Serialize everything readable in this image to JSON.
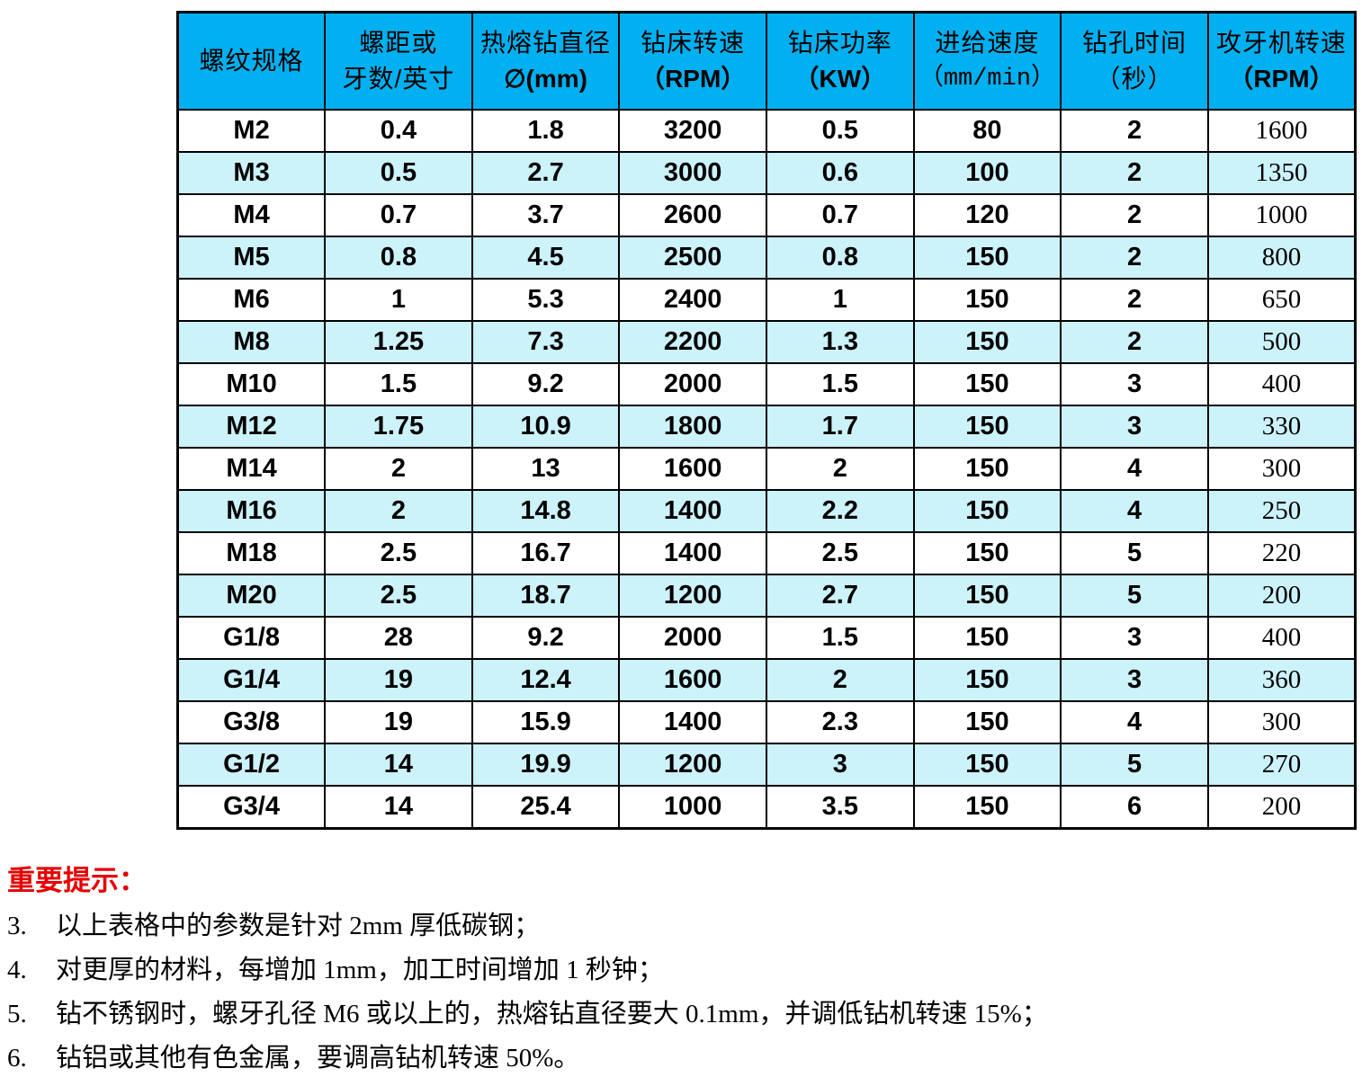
{
  "table": {
    "headers": [
      {
        "line1": "螺纹规格",
        "line2": ""
      },
      {
        "line1": "螺距或",
        "line2": "牙数/英寸"
      },
      {
        "line1": "热熔钻直径",
        "line2": "∅(mm)"
      },
      {
        "line1": "钻床转速",
        "line2": "（RPM）"
      },
      {
        "line1": "钻床功率",
        "line2": "（KW）"
      },
      {
        "line1": "进给速度",
        "line2": "（mm/min）"
      },
      {
        "line1": "钻孔时间",
        "line2": "（秒）"
      },
      {
        "line1": "攻牙机转速",
        "line2": "（RPM）"
      }
    ],
    "rows": [
      [
        "M2",
        "0.4",
        "1.8",
        "3200",
        "0.5",
        "80",
        "2",
        "1600"
      ],
      [
        "M3",
        "0.5",
        "2.7",
        "3000",
        "0.6",
        "100",
        "2",
        "1350"
      ],
      [
        "M4",
        "0.7",
        "3.7",
        "2600",
        "0.7",
        "120",
        "2",
        "1000"
      ],
      [
        "M5",
        "0.8",
        "4.5",
        "2500",
        "0.8",
        "150",
        "2",
        "800"
      ],
      [
        "M6",
        "1",
        "5.3",
        "2400",
        "1",
        "150",
        "2",
        "650"
      ],
      [
        "M8",
        "1.25",
        "7.3",
        "2200",
        "1.3",
        "150",
        "2",
        "500"
      ],
      [
        "M10",
        "1.5",
        "9.2",
        "2000",
        "1.5",
        "150",
        "3",
        "400"
      ],
      [
        "M12",
        "1.75",
        "10.9",
        "1800",
        "1.7",
        "150",
        "3",
        "330"
      ],
      [
        "M14",
        "2",
        "13",
        "1600",
        "2",
        "150",
        "4",
        "300"
      ],
      [
        "M16",
        "2",
        "14.8",
        "1400",
        "2.2",
        "150",
        "4",
        "250"
      ],
      [
        "M18",
        "2.5",
        "16.7",
        "1400",
        "2.5",
        "150",
        "5",
        "220"
      ],
      [
        "M20",
        "2.5",
        "18.7",
        "1200",
        "2.7",
        "150",
        "5",
        "200"
      ],
      [
        "G1/8",
        "28",
        "9.2",
        "2000",
        "1.5",
        "150",
        "3",
        "400"
      ],
      [
        "G1/4",
        "19",
        "12.4",
        "1600",
        "2",
        "150",
        "3",
        "360"
      ],
      [
        "G3/8",
        "19",
        "15.9",
        "1400",
        "2.3",
        "150",
        "4",
        "300"
      ],
      [
        "G1/2",
        "14",
        "19.9",
        "1200",
        "3",
        "150",
        "5",
        "270"
      ],
      [
        "G3/4",
        "14",
        "25.4",
        "1000",
        "3.5",
        "150",
        "6",
        "200"
      ]
    ]
  },
  "notes": {
    "heading": "重要提示：",
    "items": [
      {
        "num": "3.",
        "text": "以上表格中的参数是针对 2mm 厚低碳钢；"
      },
      {
        "num": "4.",
        "text": "对更厚的材料，每增加 1mm，加工时间增加 1 秒钟；"
      },
      {
        "num": "5.",
        "text": "钻不锈钢时，螺牙孔径 M6 或以上的，热熔钻直径要大 0.1mm，并调低钻机转速 15%；"
      },
      {
        "num": "6.",
        "text": "钻铝或其他有色金属，要调高钻机转速 50%。"
      }
    ]
  },
  "colors": {
    "header_bg": "#00B0F0",
    "stripe_bg": "#CCF2FA",
    "border": "#000000",
    "notes_heading": "#E60000"
  }
}
